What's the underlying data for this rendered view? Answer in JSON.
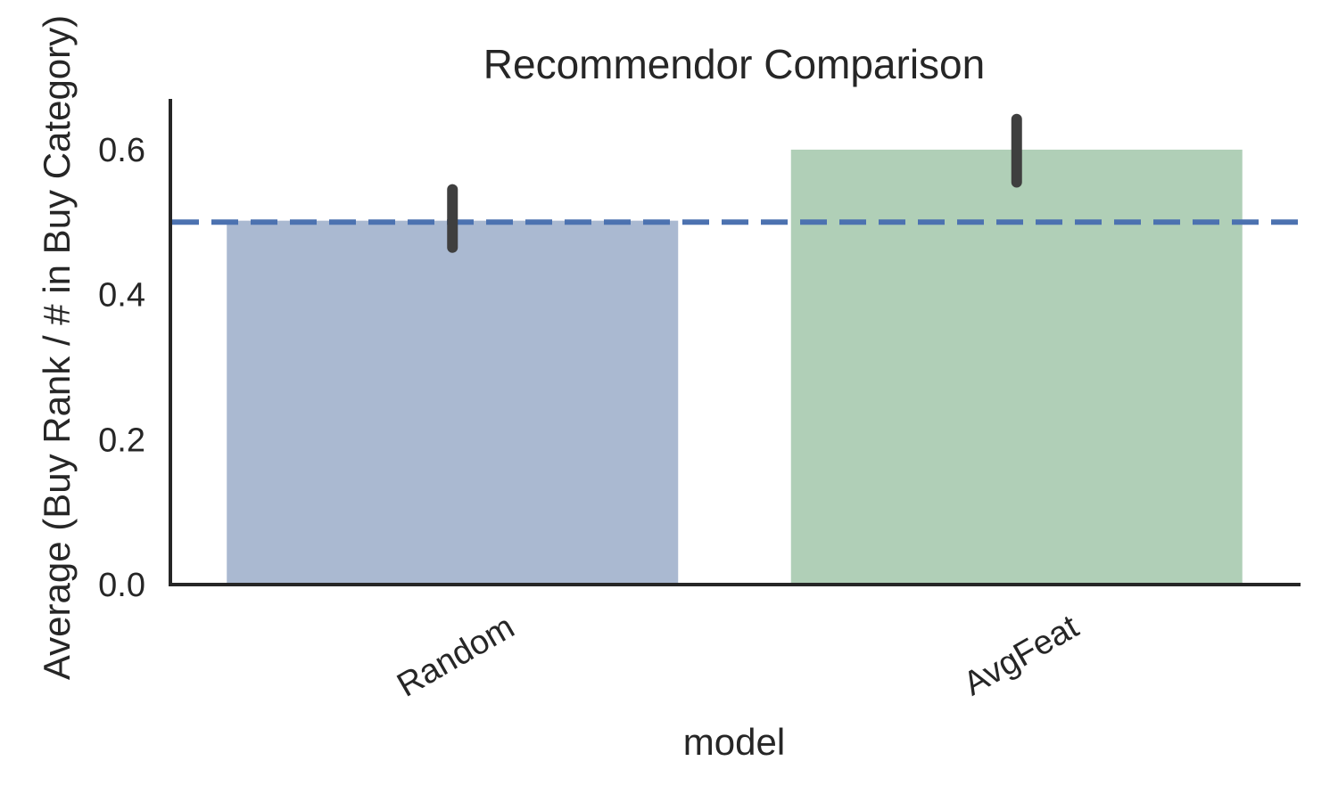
{
  "chart_data": {
    "type": "bar",
    "title": "Recommendor Comparison",
    "xlabel": "model",
    "ylabel": "Average (Buy Rank / # in Buy Category)",
    "categories": [
      "Random",
      "AvgFeat"
    ],
    "values": [
      0.502,
      0.6
    ],
    "error_bars": [
      {
        "low": 0.465,
        "high": 0.545
      },
      {
        "low": 0.555,
        "high": 0.642
      }
    ],
    "ylim": [
      0,
      0.67
    ],
    "yticks": [
      0.0,
      0.2,
      0.4,
      0.6
    ],
    "ytick_labels": [
      "0.0",
      "0.2",
      "0.4",
      "0.6"
    ],
    "reference_line": {
      "y": 0.5,
      "style": "dashed",
      "color": "#4c72b0"
    },
    "bar_colors": [
      "#aab9d1",
      "#b0cfb7"
    ],
    "error_bar_color": "#3f3f3f",
    "grid": false,
    "legend": "none"
  }
}
